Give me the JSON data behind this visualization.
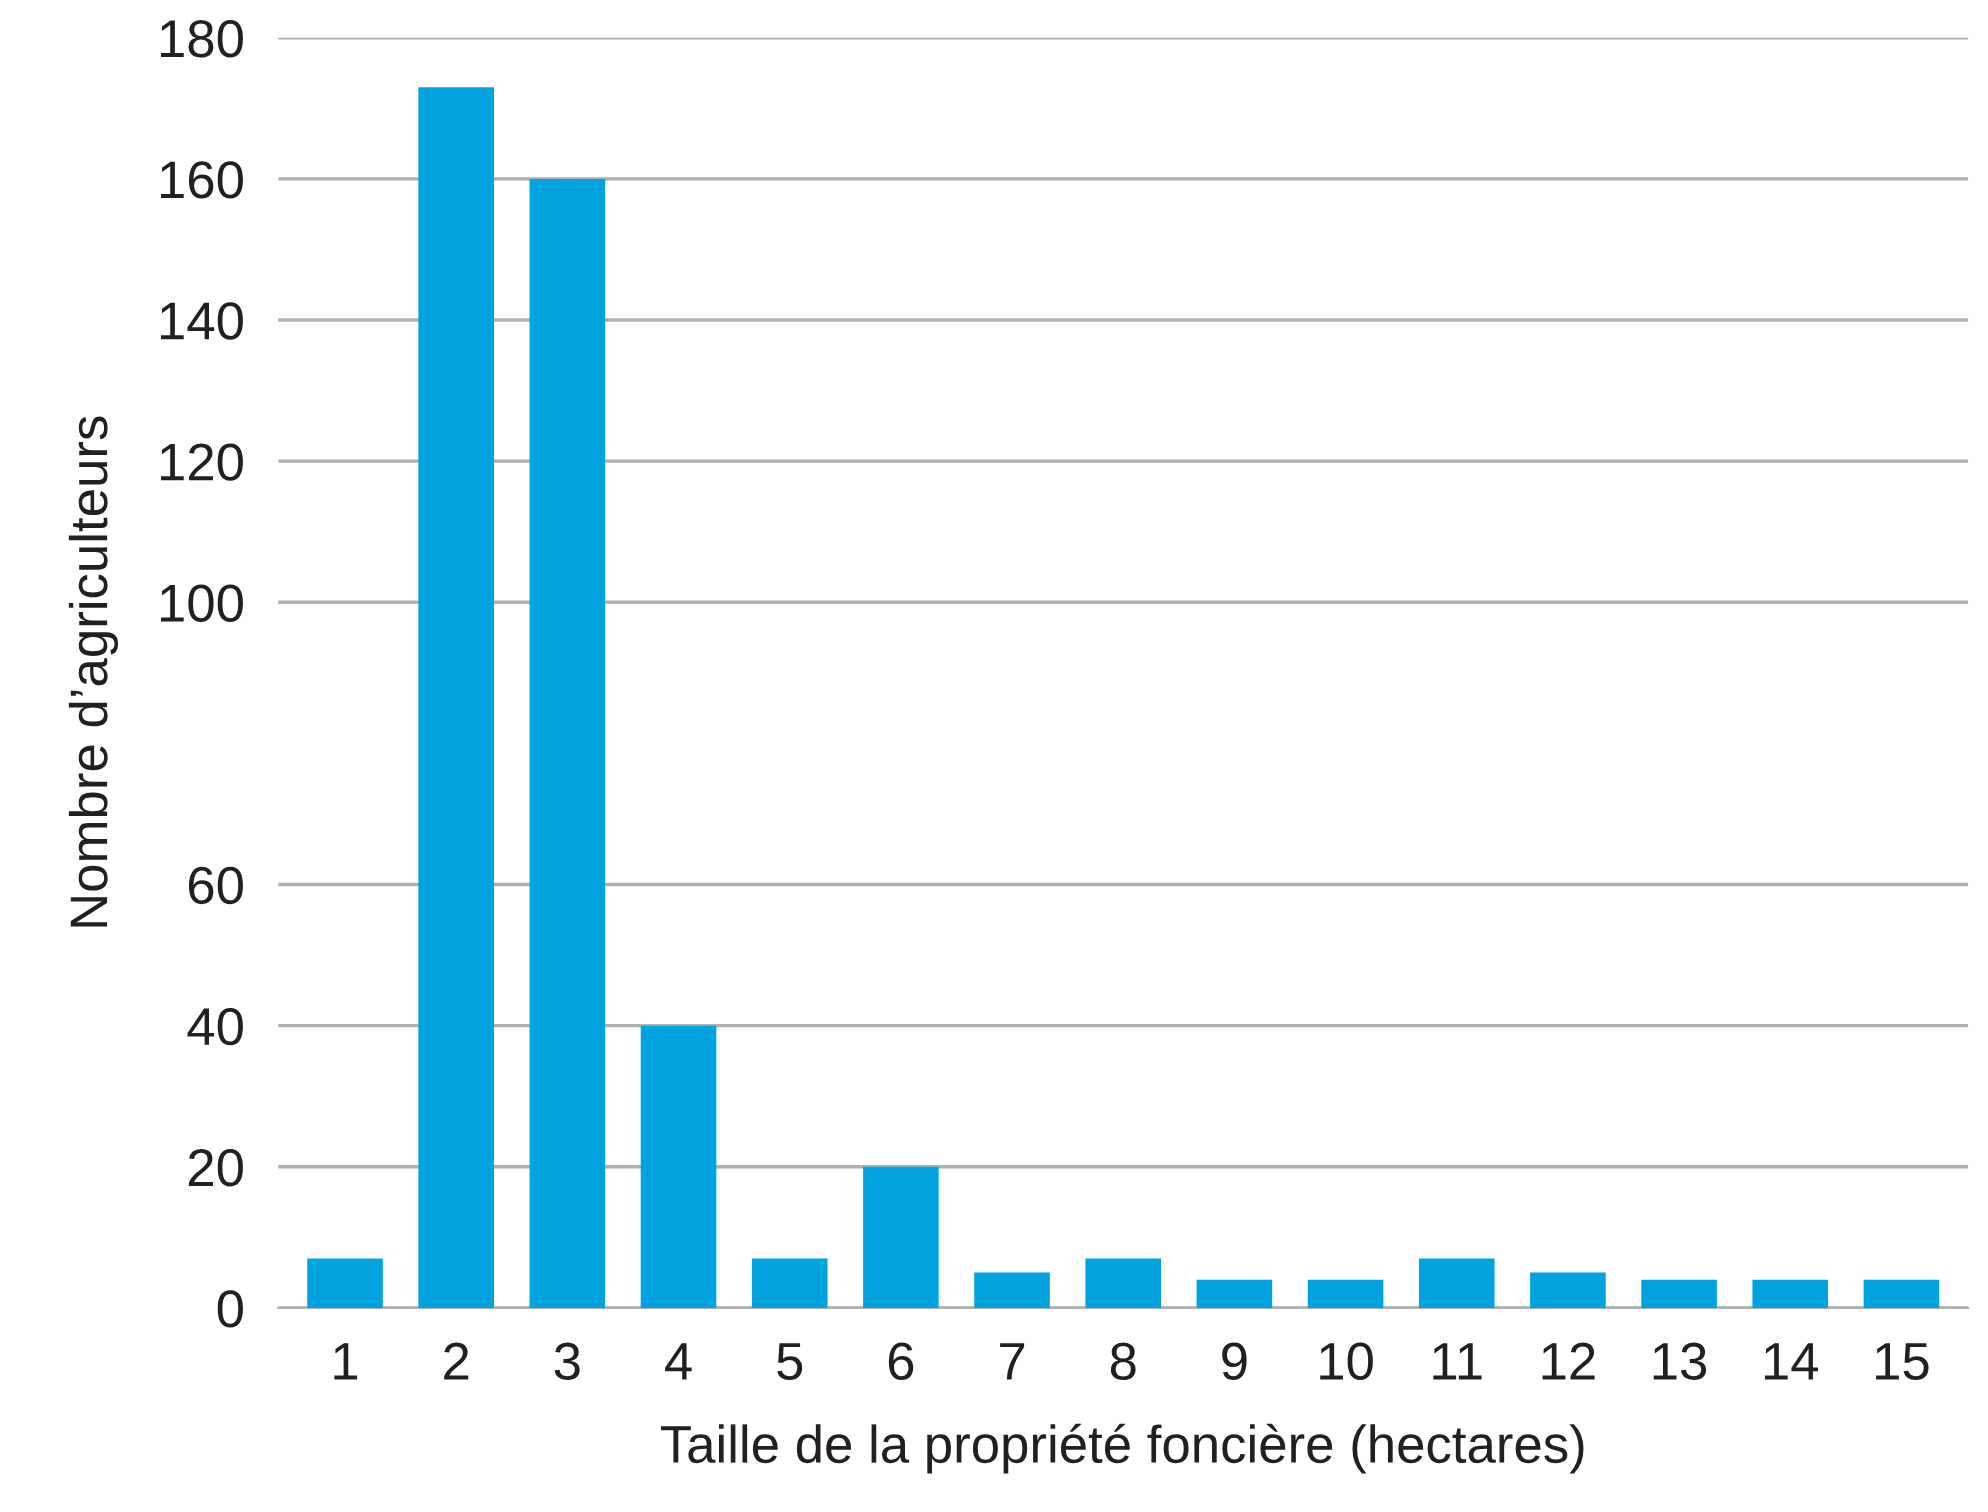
{
  "chart_data": {
    "type": "bar",
    "xlabel": "Taille de la propriété foncière (hectares)",
    "ylabel": "Nombre d’agriculteurs",
    "categories": [
      "1",
      "2",
      "3",
      "4",
      "5",
      "6",
      "7",
      "8",
      "9",
      "10",
      "11",
      "12",
      "13",
      "14",
      "15"
    ],
    "values": [
      7,
      173,
      160,
      40,
      7,
      20,
      5,
      7,
      4,
      4,
      7,
      5,
      4,
      4,
      4
    ],
    "color": "#00a3e0",
    "ylim": [
      0,
      180
    ],
    "yticks": [
      0,
      20,
      40,
      60,
      100,
      120,
      140,
      160,
      180
    ],
    "grid": "y",
    "legend": false
  }
}
